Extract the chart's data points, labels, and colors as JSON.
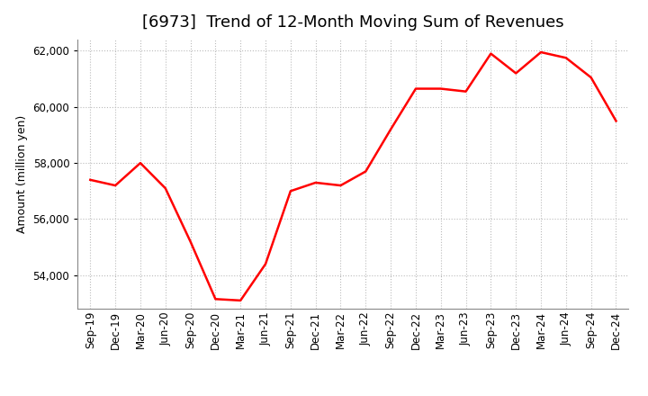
{
  "title": "[6973]  Trend of 12-Month Moving Sum of Revenues",
  "ylabel": "Amount (million yen)",
  "line_color": "#FF0000",
  "background_color": "#FFFFFF",
  "grid_color": "#BBBBBB",
  "xlabels": [
    "Sep-19",
    "Dec-19",
    "Mar-20",
    "Jun-20",
    "Sep-20",
    "Dec-20",
    "Mar-21",
    "Jun-21",
    "Sep-21",
    "Dec-21",
    "Mar-22",
    "Jun-22",
    "Sep-22",
    "Dec-22",
    "Mar-23",
    "Jun-23",
    "Sep-23",
    "Dec-23",
    "Mar-24",
    "Jun-24",
    "Sep-24",
    "Dec-24"
  ],
  "values": [
    57400,
    57200,
    58000,
    57100,
    55200,
    53150,
    53100,
    54400,
    57000,
    57300,
    57200,
    57700,
    59200,
    60650,
    60650,
    60550,
    61900,
    61200,
    61950,
    61750,
    61050,
    59500
  ],
  "ylim": [
    52800,
    62400
  ],
  "yticks": [
    54000,
    56000,
    58000,
    60000,
    62000
  ],
  "title_fontsize": 13,
  "ylabel_fontsize": 9,
  "tick_fontsize": 8.5,
  "linewidth": 1.8
}
